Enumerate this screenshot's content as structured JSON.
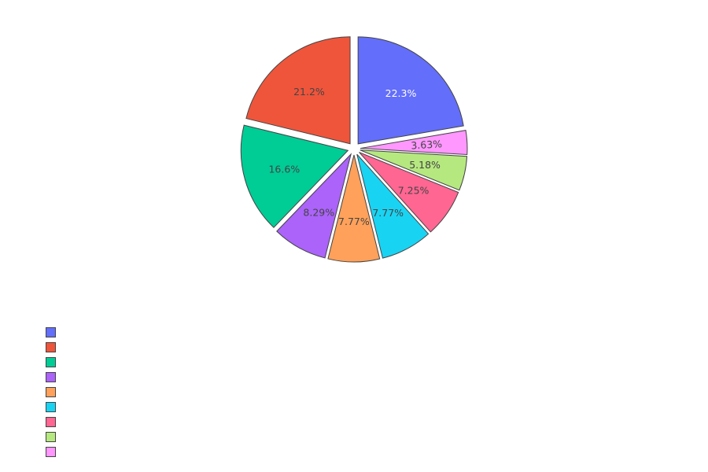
{
  "chart_data": {
    "type": "pie",
    "direction": "clockwise",
    "start_angle_deg": 0,
    "exploded": true,
    "legend_position": "bottom-left",
    "legend_labels_visible": false,
    "slices": [
      {
        "label": "22.3%",
        "value": 22.3,
        "color": "#636efa",
        "text_color": "#ffffff"
      },
      {
        "label": "3.63%",
        "value": 3.63,
        "color": "#ff97ff",
        "text_color": "#444444"
      },
      {
        "label": "5.18%",
        "value": 5.18,
        "color": "#b6e880",
        "text_color": "#444444"
      },
      {
        "label": "7.25%",
        "value": 7.25,
        "color": "#ff6692",
        "text_color": "#444444"
      },
      {
        "label": "7.77%",
        "value": 7.77,
        "color": "#19d3f3",
        "text_color": "#444444"
      },
      {
        "label": "7.77%",
        "value": 7.77,
        "color": "#ffa15a",
        "text_color": "#444444"
      },
      {
        "label": "8.29%",
        "value": 8.29,
        "color": "#ab63fa",
        "text_color": "#444444"
      },
      {
        "label": "16.6%",
        "value": 16.6,
        "color": "#00cc96",
        "text_color": "#444444"
      },
      {
        "label": "21.2%",
        "value": 21.2,
        "color": "#ef553b",
        "text_color": "#444444"
      }
    ],
    "legend_order": [
      "#636efa",
      "#ef553b",
      "#00cc96",
      "#ab63fa",
      "#ffa15a",
      "#19d3f3",
      "#ff6692",
      "#b6e880",
      "#ff97ff"
    ]
  }
}
